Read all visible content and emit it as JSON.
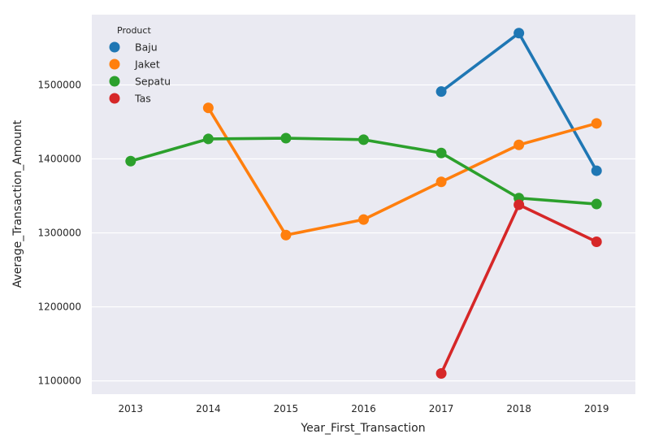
{
  "chart_data": {
    "type": "line",
    "xlabel": "Year_First_Transaction",
    "ylabel": "Average_Transaction_Amount",
    "categories": [
      "2013",
      "2014",
      "2015",
      "2016",
      "2017",
      "2018",
      "2019"
    ],
    "yticks": [
      "1100000",
      "1200000",
      "1300000",
      "1400000",
      "1500000"
    ],
    "ylim": [
      1082000,
      1595000
    ],
    "grid": true,
    "background": "#eaeaf2",
    "legend": {
      "title": "Product",
      "position": "top-left"
    },
    "series": [
      {
        "name": "Baju",
        "color": "#1f77b4",
        "values": [
          null,
          null,
          null,
          null,
          1491000,
          1570000,
          1384000
        ]
      },
      {
        "name": "Jaket",
        "color": "#ff7f0e",
        "values": [
          null,
          1469000,
          1297000,
          1318000,
          1369000,
          1419000,
          1448000
        ]
      },
      {
        "name": "Sepatu",
        "color": "#2ca02c",
        "values": [
          1397000,
          1427000,
          1428000,
          1426000,
          1408000,
          1347000,
          1339000
        ]
      },
      {
        "name": "Tas",
        "color": "#d62728",
        "values": [
          null,
          null,
          null,
          null,
          1110000,
          1338000,
          1288000
        ]
      }
    ]
  }
}
